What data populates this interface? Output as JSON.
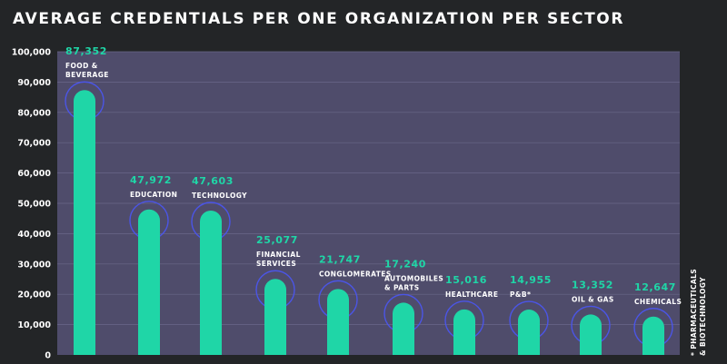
{
  "chart_data": {
    "type": "bar",
    "title": "AVERAGE CREDENTIALS PER ONE ORGANIZATION PER SECTOR",
    "categories": [
      [
        "FOOD &",
        "BEVERAGE"
      ],
      [
        "EDUCATION"
      ],
      [
        "TECHNOLOGY"
      ],
      [
        "FINANCIAL",
        "SERVICES"
      ],
      [
        "CONGLOMERATES"
      ],
      [
        "AUTOMOBILES",
        "& PARTS"
      ],
      [
        "HEALTHCARE"
      ],
      [
        "P&B*"
      ],
      [
        "OIL & GAS"
      ],
      [
        "CHEMICALS"
      ]
    ],
    "values": [
      87352,
      47972,
      47603,
      25077,
      21747,
      17240,
      15016,
      14955,
      13352,
      12647
    ],
    "value_labels": [
      "87,352",
      "47,972",
      "47,603",
      "25,077",
      "21,747",
      "17,240",
      "15,016",
      "14,955",
      "13,352",
      "12,647"
    ],
    "ylim": [
      0,
      100000
    ],
    "yticks": [
      "0",
      "10,000",
      "20,000",
      "30,000",
      "40,000",
      "50,000",
      "60,000",
      "70,000",
      "80,000",
      "90,000",
      "100,000"
    ],
    "grid": true,
    "footnote": [
      "* PHARMACEUTICALS",
      "& BIOTECHNOLOGY"
    ],
    "colors": {
      "background": "#232527",
      "plot_area": "#4f4c6b",
      "grid": "#6a6789",
      "bar": "#1fd6a7",
      "ring": "#4b55e6",
      "value_label": "#1fd6a7",
      "text": "#ffffff"
    }
  }
}
